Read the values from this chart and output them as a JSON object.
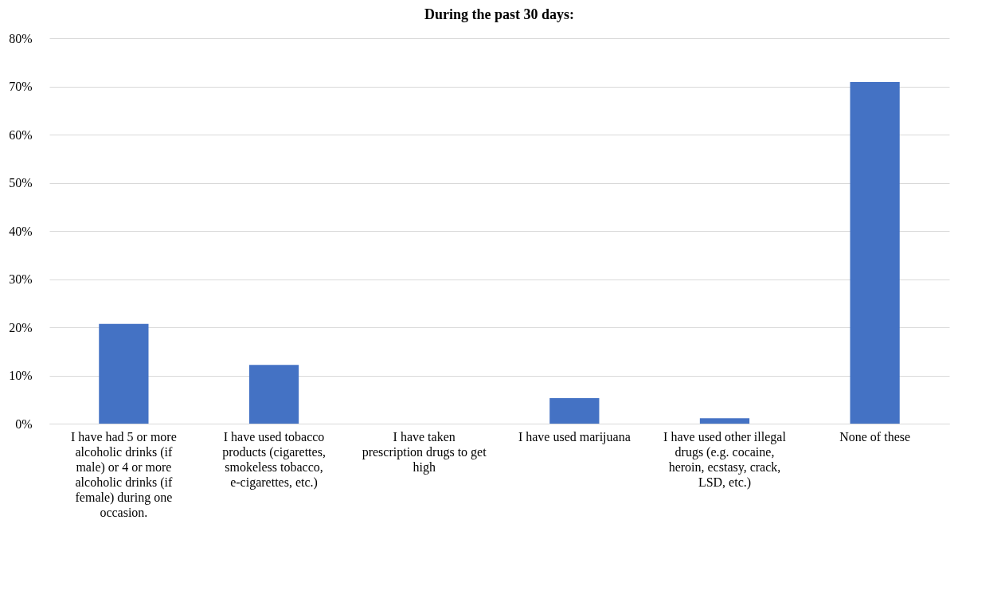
{
  "chart_data": {
    "type": "bar",
    "title": "During the past 30 days:",
    "categories": [
      "I have had 5 or more alcoholic drinks (if male) or 4 or more alcoholic drinks (if female) during one occasion.",
      "I have used tobacco products (cigarettes, smokeless tobacco, e-cigarettes, etc.)",
      "I have taken prescription drugs to get high",
      "I have used marijuana",
      "I have used other illegal drugs (e.g. cocaine, heroin, ecstasy, crack, LSD, etc.)",
      "None of these"
    ],
    "values": [
      0.207,
      0.122,
      0,
      0.053,
      0.011,
      0.709
    ],
    "color": "#4472c4",
    "ylim": [
      0,
      0.8
    ],
    "yticks": [
      {
        "value": 0,
        "label": "0%"
      },
      {
        "value": 0.1,
        "label": "10%"
      },
      {
        "value": 0.2,
        "label": "20%"
      },
      {
        "value": 0.3,
        "label": "30%"
      },
      {
        "value": 0.4,
        "label": "40%"
      },
      {
        "value": 0.5,
        "label": "50%"
      },
      {
        "value": 0.6,
        "label": "60%"
      },
      {
        "value": 0.7,
        "label": "70%"
      },
      {
        "value": 0.8,
        "label": "80%"
      }
    ],
    "grid": "y"
  }
}
